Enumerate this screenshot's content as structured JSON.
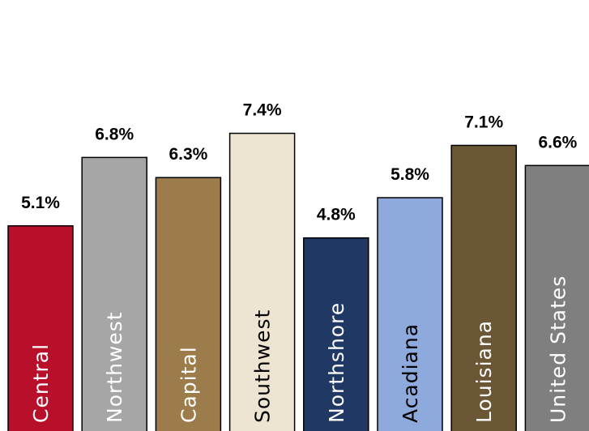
{
  "chart_data": {
    "type": "bar",
    "title": "",
    "xlabel": "",
    "ylabel": "",
    "categories": [
      "Central",
      "Northwest",
      "Capital",
      "Southwest",
      "Northshore",
      "Acadiana",
      "Louisiana",
      "United States"
    ],
    "values": [
      5.1,
      6.8,
      6.3,
      7.4,
      4.8,
      5.8,
      7.1,
      6.6
    ],
    "value_labels": [
      "5.1%",
      "6.8%",
      "6.3%",
      "7.4%",
      "4.8%",
      "5.8%",
      "7.1%",
      "6.6%"
    ],
    "colors": [
      "#b8102a",
      "#a6a6a6",
      "#9c7c4a",
      "#ede4d2",
      "#1f3864",
      "#8eaadc",
      "#6b5636",
      "#7f7f7f"
    ],
    "label_colors": [
      "#ffffff",
      "#ffffff",
      "#ffffff",
      "#000000",
      "#ffffff",
      "#000000",
      "#ffffff",
      "#ffffff"
    ],
    "ylim": [
      0,
      10.5
    ],
    "grid": false,
    "legend": "none",
    "bar_labels_inside": true
  }
}
